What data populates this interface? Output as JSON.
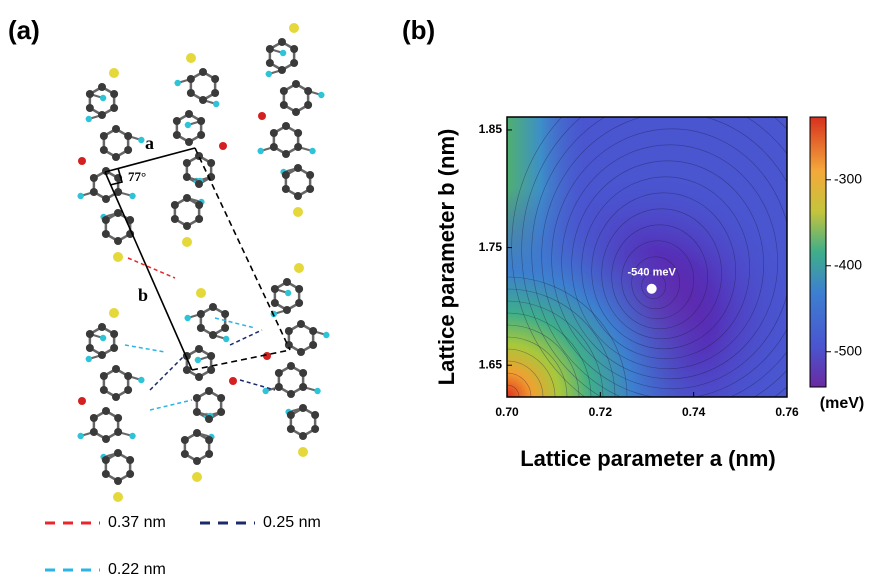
{
  "panel_a": {
    "label": "(a)",
    "lattice_a": "a",
    "lattice_b": "b",
    "angle": "77°",
    "legend": [
      {
        "text": "0.37 nm",
        "color": "#e8262b"
      },
      {
        "text": "0.25 nm",
        "color": "#1b2a6b"
      },
      {
        "text": "0.22 nm",
        "color": "#29b5e8"
      }
    ]
  },
  "panel_b": {
    "label": "(b)",
    "type": "contour",
    "xlabel": "Lattice parameter a (nm)",
    "ylabel": "Lattice parameter b (nm)",
    "xlim": [
      0.7,
      0.76
    ],
    "xticks": [
      {
        "value": 0.7,
        "label": "0.70"
      },
      0.72,
      0.74,
      0.76
    ],
    "ylim": [
      1.623,
      1.861
    ],
    "yticks": [
      1.65,
      1.75,
      1.85
    ],
    "minimum": {
      "x": 0.731,
      "y": 1.715,
      "label": "-540 meV"
    },
    "colorbar": {
      "label": "(meV)",
      "lim": [
        -541,
        -227
      ],
      "ticks": [
        -300,
        -400,
        -500
      ]
    }
  }
}
